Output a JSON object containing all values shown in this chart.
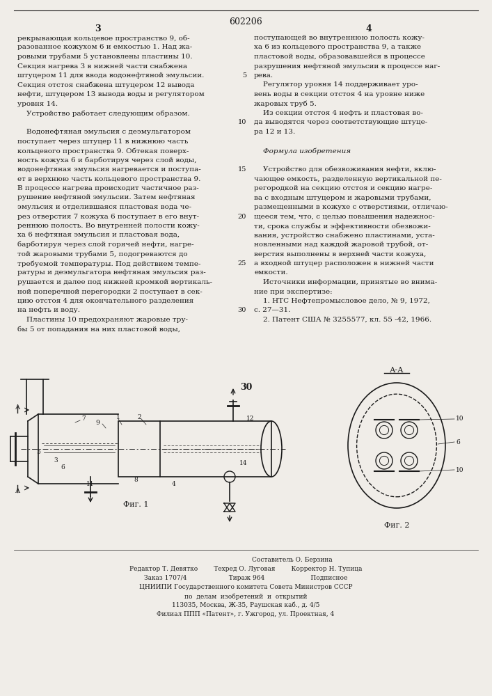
{
  "page_number": "602206",
  "col_left_number": "3",
  "col_right_number": "4",
  "page_bottom_number": "30",
  "background_color": "#f0ede8",
  "text_color": "#1a1a1a",
  "line_color": "#1a1a1a",
  "col_left_text": [
    "рекрывающая кольцевое пространство 9, об-",
    "разованное кожухом 6 и емкостью 1. Над жа-",
    "ровыми трубами 5 установлены пластины 10.",
    "Секция нагрева 3 в нижней части снабжена",
    "штуцером 11 для ввода водонефтяной эмульсии.",
    "Секция отстоя снабжена штуцером 12 вывода",
    "нефти, штуцером 13 вывода воды и регулятором",
    "уровня 14.",
    "    Устройство работает следующим образом.",
    "",
    "    Водонефтяная эмульсия с деэмульгатором",
    "поступает через штуцер 11 в нижнюю часть",
    "кольцевого пространства 9. Обтекая поверх-",
    "ность кожуха 6 и барботируя через слой воды,",
    "водонефтяная эмульсия нагревается и поступа-",
    "ет в верхнюю часть кольцевого пространства 9.",
    "В процессе нагрева происходит частичное раз-",
    "рушение нефтяной эмульсии. Затем нефтяная",
    "эмульсия и отделившаяся пластовая вода че-",
    "рез отверстия 7 кожуха 6 поступает в его внут-",
    "реннюю полость. Во внутренней полости кожу-",
    "ха 6 нефтяная эмульсия и пластовая вода,",
    "барботируя через слой горячей нефти, нагре-",
    "той жаровыми трубами 5, подогреваются до",
    "требуемой температуры. Под действием темпе-",
    "ратуры и деэмульгатора нефтяная эмульсия раз-",
    "рушается и далее под нижней кромкой вертикаль-",
    "ной поперечной перегородки 2 поступает в сек-",
    "цию отстоя 4 для окончательного разделения",
    "на нефть и воду.",
    "    Пластины 10 предохраняют жаровые тру-",
    "бы 5 от попадания на них пластовой воды,"
  ],
  "col_right_text": [
    "поступающей во внутреннюю полость кожу-",
    "ха 6 из кольцевого пространства 9, а также",
    "пластовой воды, образовавшейся в процессе",
    "разрушения нефтяной эмульсии в процессе наг-",
    "рева.",
    "    Регулятор уровня 14 поддерживает уро-",
    "вень воды в секции отстоя 4 на уровне ниже",
    "жаровых труб 5.",
    "    Из секции отстоя 4 нефть и пластовая во-",
    "да выводятся через соответствующие штуце-",
    "ра 12 и 13.",
    "",
    "    Формула изобретения",
    "",
    "    Устройство для обезвоживания нефти, вклю-",
    "чающее емкость, разделенную вертикальной пе-",
    "регородкой на секцию отстоя и секцию нагре-",
    "ва с входным штуцером и жаровыми трубами,",
    "размещенными в кожухе с отверстиями, отличаю-",
    "щееся тем, что, с целью повышения надежнос-",
    "ти, срока службы и эффективности обезвожи-",
    "вания, устройство снабжено пластинами, уста-",
    "новленными над каждой жаровой трубой, от-",
    "верстия выполнены в верхней части кожуха,",
    "а входной штуцер расположен в нижней части",
    "емкости.",
    "    Источники информации, принятые во внима-",
    "ние при экспертизе:",
    "    1. НТС Нефтепромысловое дело, № 9, 1972,",
    "с. 27—31.",
    "    2. Патент США № 3255577, кл. 55 -42, 1966."
  ],
  "line_numbers_right": [
    5,
    10,
    15,
    20,
    25,
    30
  ],
  "fig1_caption": "Фиг. 1",
  "fig2_caption": "Фиг. 2",
  "fig2_section_label": "А-А",
  "footer_lines": [
    "Составитель О. Берзина",
    "Редактор Т. Девятко        Техред О. Луговая        Корректор Н. Тупица",
    "Заказ 1707/4                     Тираж 964                       Подписное",
    "",
    "ЦНИИПИ Государственного комитета Совета Министров СССР",
    "по  делам  изобретений  и  открытий",
    "113035, Москва, Ж-35, Раушская каб., д. 4/5",
    "Филиал ППП «Патент», г. Ужгород, ул. Проектная, 4"
  ]
}
